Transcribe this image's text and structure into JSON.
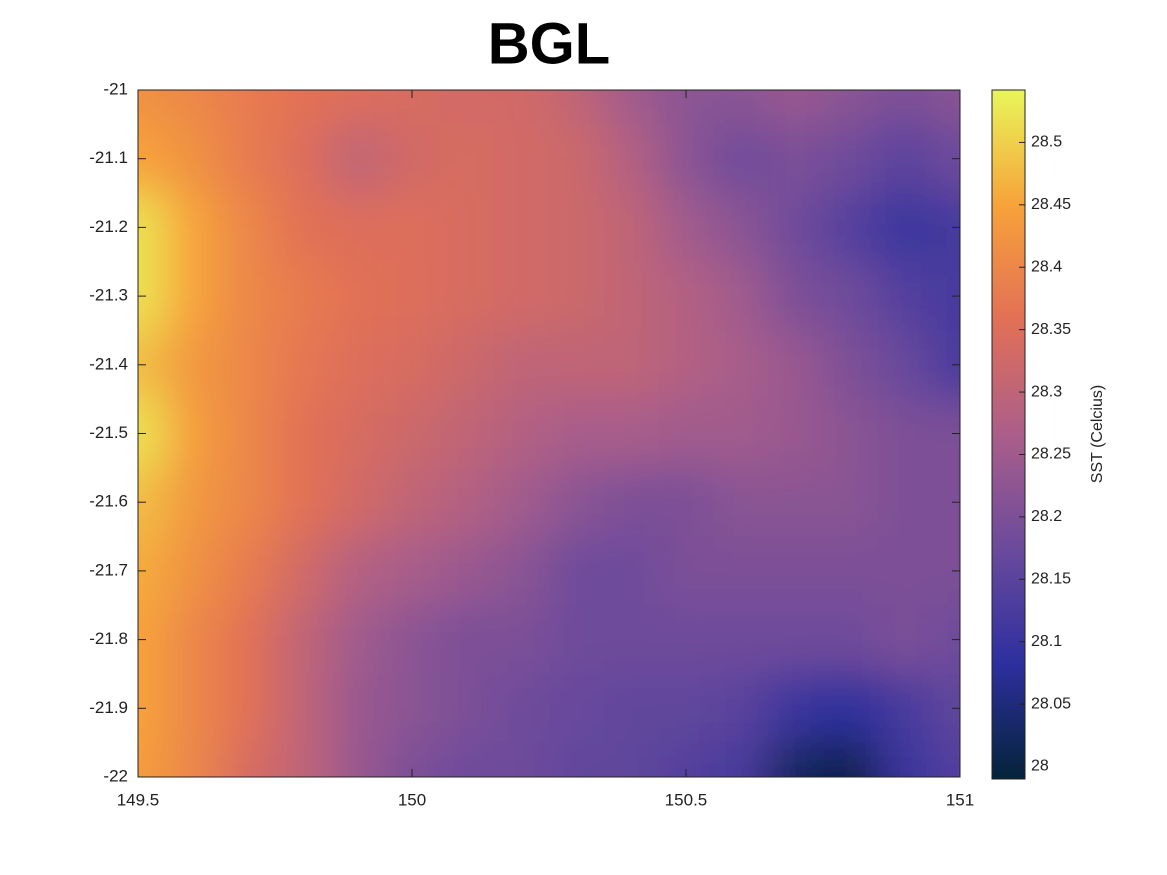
{
  "chart_data": {
    "type": "heatmap",
    "title": "BGL",
    "x": [
      149.5,
      149.6,
      149.7,
      149.8,
      149.9,
      150,
      150.1,
      150.2,
      150.3,
      150.4,
      150.5,
      150.6,
      150.7,
      150.8,
      150.9,
      151
    ],
    "y": [
      -21,
      -21.1,
      -21.2,
      -21.3,
      -21.4,
      -21.5,
      -21.6,
      -21.7,
      -21.8,
      -21.9,
      -22
    ],
    "z": [
      [
        28.42,
        28.4,
        28.38,
        28.36,
        28.35,
        28.34,
        28.33,
        28.33,
        28.3,
        28.25,
        28.22,
        28.22,
        28.24,
        28.22,
        28.2,
        28.22
      ],
      [
        28.45,
        28.42,
        28.38,
        28.35,
        28.3,
        28.33,
        28.34,
        28.33,
        28.32,
        28.28,
        28.22,
        28.18,
        28.2,
        28.18,
        28.15,
        28.18
      ],
      [
        28.52,
        28.45,
        28.4,
        28.36,
        28.35,
        28.35,
        28.34,
        28.33,
        28.32,
        28.3,
        28.25,
        28.22,
        28.18,
        28.14,
        28.1,
        28.12
      ],
      [
        28.52,
        28.45,
        28.4,
        28.38,
        28.36,
        28.35,
        28.34,
        28.33,
        28.32,
        28.3,
        28.28,
        28.25,
        28.2,
        28.18,
        28.14,
        28.12
      ],
      [
        28.48,
        28.43,
        28.4,
        28.37,
        28.35,
        28.34,
        28.32,
        28.3,
        28.3,
        28.3,
        28.28,
        28.26,
        28.24,
        28.2,
        28.17,
        28.12
      ],
      [
        28.52,
        28.44,
        28.4,
        28.36,
        28.34,
        28.32,
        28.3,
        28.28,
        28.26,
        28.26,
        28.25,
        28.25,
        28.24,
        28.22,
        28.2,
        28.2
      ],
      [
        28.48,
        28.43,
        28.4,
        28.36,
        28.33,
        28.3,
        28.28,
        28.25,
        28.22,
        28.2,
        28.2,
        28.22,
        28.22,
        28.22,
        28.2,
        28.2
      ],
      [
        28.46,
        28.42,
        28.38,
        28.33,
        28.28,
        28.26,
        28.24,
        28.22,
        28.18,
        28.18,
        28.2,
        28.2,
        28.2,
        28.2,
        28.2,
        28.2
      ],
      [
        28.45,
        28.4,
        28.36,
        28.3,
        28.25,
        28.22,
        28.2,
        28.2,
        28.18,
        28.18,
        28.18,
        28.18,
        28.18,
        28.18,
        28.2,
        28.18
      ],
      [
        28.45,
        28.4,
        28.36,
        28.3,
        28.24,
        28.22,
        28.2,
        28.18,
        28.17,
        28.16,
        28.16,
        28.15,
        28.1,
        28.08,
        28.12,
        28.16
      ],
      [
        28.44,
        28.4,
        28.34,
        28.3,
        28.24,
        28.2,
        28.18,
        28.18,
        28.16,
        28.16,
        28.14,
        28.12,
        28.02,
        28.0,
        28.1,
        28.14
      ]
    ],
    "xlim": [
      149.5,
      151
    ],
    "ylim": [
      -22,
      -21
    ],
    "xticks": [
      149.5,
      150,
      150.5,
      151
    ],
    "yticks": [
      -21,
      -21.1,
      -21.2,
      -21.3,
      -21.4,
      -21.5,
      -21.6,
      -21.7,
      -21.8,
      -21.9,
      -22
    ],
    "clim": [
      27.99,
      28.542
    ],
    "cticks": [
      28,
      28.05,
      28.1,
      28.15,
      28.2,
      28.25,
      28.3,
      28.35,
      28.4,
      28.45,
      28.5
    ],
    "colorbar_label": "SST (Celcius)",
    "colormap": [
      "#04233a",
      "#2d2f9e",
      "#6a4a9c",
      "#ab5e8a",
      "#e27056",
      "#f7a33a",
      "#e8f65a"
    ]
  }
}
